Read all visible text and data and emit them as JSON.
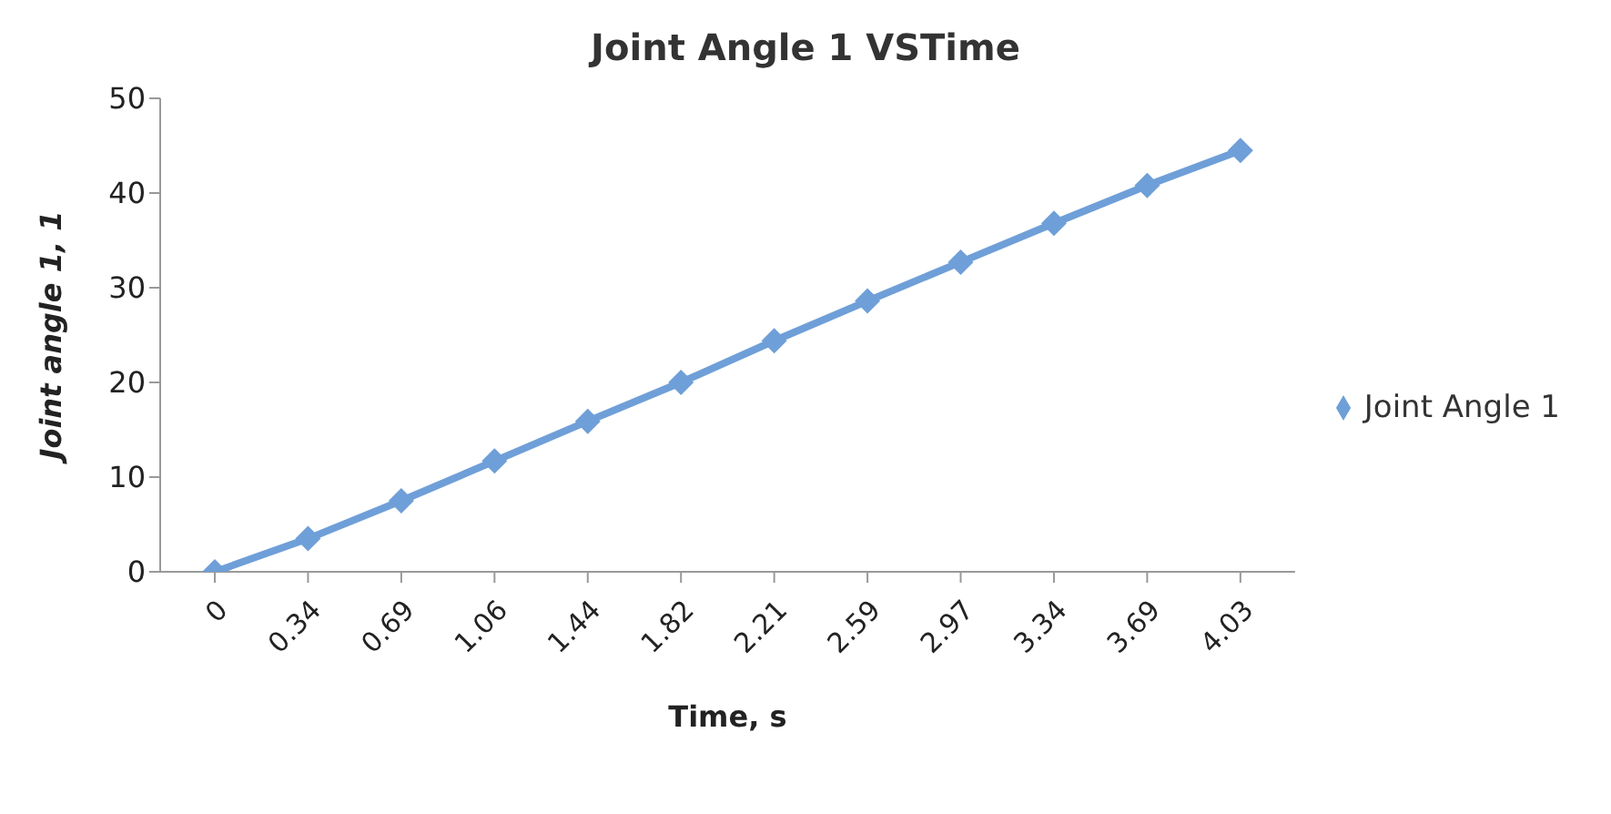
{
  "chart_data": {
    "type": "line",
    "title": "Joint Angle 1 VSTime",
    "xlabel": "Time, s",
    "ylabel": "Joint angle 1, 1",
    "categories": [
      "0",
      "0.34",
      "0.69",
      "1.06",
      "1.44",
      "1.82",
      "2.21",
      "2.59",
      "2.97",
      "3.34",
      "3.69",
      "4.03"
    ],
    "series": [
      {
        "name": "Joint Angle 1",
        "color": "#6f9fd8",
        "values": [
          0,
          3.5,
          7.5,
          11.7,
          15.9,
          20.0,
          24.4,
          28.6,
          32.7,
          36.8,
          40.8,
          44.5
        ]
      }
    ],
    "ylim": [
      0,
      50
    ],
    "yticks": [
      0,
      10,
      20,
      30,
      40,
      50
    ],
    "grid": false,
    "legend": "right",
    "marker": "diamond",
    "line_style": "solid"
  }
}
